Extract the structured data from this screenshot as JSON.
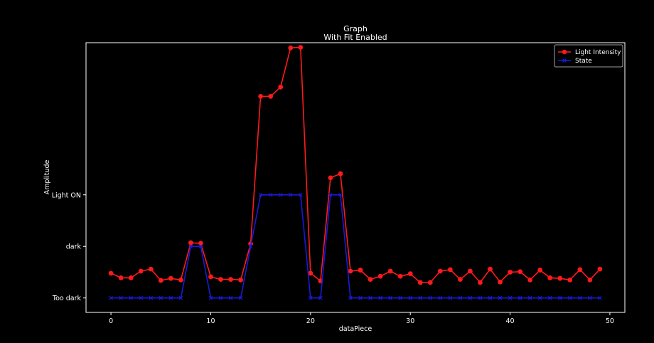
{
  "chart_data": {
    "type": "line",
    "title": "Graph",
    "subtitle": "With Fit Enabled",
    "xlabel": "dataPiece",
    "ylabel": "Amplitude",
    "xlim": [
      -2.5,
      51.5
    ],
    "ylim": [
      -0.28,
      4.95
    ],
    "xticks": [
      0,
      10,
      20,
      30,
      40,
      50
    ],
    "yticks": [
      {
        "value": 0,
        "label": "Too dark"
      },
      {
        "value": 1,
        "label": "dark"
      },
      {
        "value": 2,
        "label": "Light ON"
      }
    ],
    "grid": false,
    "legend_position": "top-right",
    "background_color": "#000000",
    "axes_color": "#ffffff",
    "series": [
      {
        "name": "Light Intensity",
        "color": "#ff1a1a",
        "marker": "circle",
        "x": [
          0,
          1,
          2,
          3,
          4,
          5,
          6,
          7,
          8,
          9,
          10,
          11,
          12,
          13,
          14,
          15,
          16,
          17,
          18,
          19,
          20,
          21,
          22,
          23,
          24,
          25,
          26,
          27,
          28,
          29,
          30,
          31,
          32,
          33,
          34,
          35,
          36,
          37,
          38,
          39,
          40,
          41,
          42,
          43,
          44,
          45,
          46,
          47,
          48,
          49
        ],
        "values": [
          0.48,
          0.39,
          0.39,
          0.52,
          0.56,
          0.34,
          0.38,
          0.35,
          1.07,
          1.06,
          0.41,
          0.36,
          0.36,
          0.35,
          1.05,
          3.91,
          3.91,
          4.09,
          4.85,
          4.86,
          0.48,
          0.33,
          2.33,
          2.41,
          0.52,
          0.54,
          0.36,
          0.42,
          0.52,
          0.42,
          0.47,
          0.3,
          0.3,
          0.52,
          0.55,
          0.36,
          0.52,
          0.3,
          0.56,
          0.31,
          0.5,
          0.51,
          0.35,
          0.54,
          0.39,
          0.38,
          0.35,
          0.55,
          0.35,
          0.56
        ]
      },
      {
        "name": "State",
        "color": "#1a1ad6",
        "marker": "x",
        "x": [
          0,
          1,
          2,
          3,
          4,
          5,
          6,
          7,
          8,
          9,
          10,
          11,
          12,
          13,
          14,
          15,
          16,
          17,
          18,
          19,
          20,
          21,
          22,
          23,
          24,
          25,
          26,
          27,
          28,
          29,
          30,
          31,
          32,
          33,
          34,
          35,
          36,
          37,
          38,
          39,
          40,
          41,
          42,
          43,
          44,
          45,
          46,
          47,
          48,
          49
        ],
        "values": [
          0,
          0,
          0,
          0,
          0,
          0,
          0,
          0,
          1,
          1,
          0,
          0,
          0,
          0,
          1,
          2,
          2,
          2,
          2,
          2,
          0,
          0,
          2,
          2,
          0,
          0,
          0,
          0,
          0,
          0,
          0,
          0,
          0,
          0,
          0,
          0,
          0,
          0,
          0,
          0,
          0,
          0,
          0,
          0,
          0,
          0,
          0,
          0,
          0,
          0
        ]
      }
    ]
  }
}
